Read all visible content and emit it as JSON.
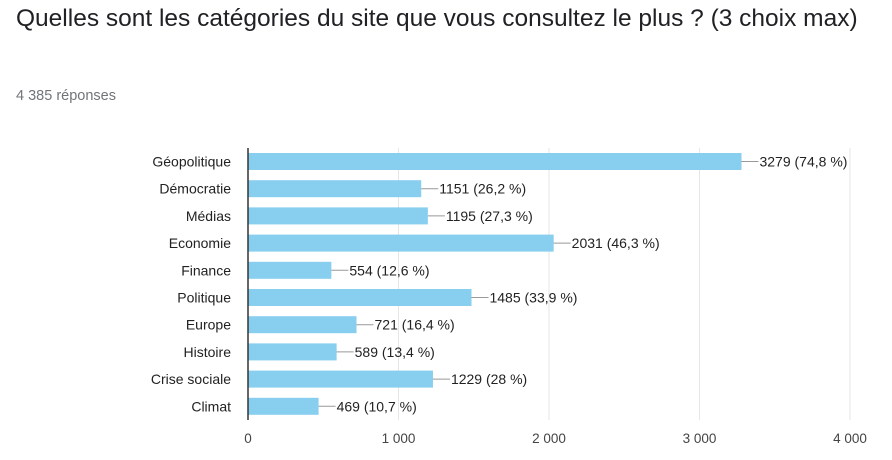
{
  "question": {
    "title": "Quelles sont les catégories du site que vous consultez le plus ? (3 choix max)",
    "responses": "4 385 réponses"
  },
  "colors": {
    "bar": "#87ceef",
    "grid": "#e6e6e6",
    "axis": "#333333",
    "leader": "#999999"
  },
  "chart_data": {
    "type": "bar",
    "orientation": "horizontal",
    "categories": [
      "Géopolitique",
      "Démocratie",
      "Médias",
      "Economie",
      "Finance",
      "Politique",
      "Europe",
      "Histoire",
      "Crise sociale",
      "Climat"
    ],
    "values": [
      3279,
      1151,
      1195,
      2031,
      554,
      1485,
      721,
      589,
      1229,
      469
    ],
    "data_labels": [
      "3279 (74,8 %)",
      "1151 (26,2 %)",
      "1195 (27,3 %)",
      "2031 (46,3 %)",
      "554 (12,6 %)",
      "1485 (33,9 %)",
      "721 (16,4 %)",
      "589 (13,4 %)",
      "1229 (28 %)",
      "469 (10,7 %)"
    ],
    "xlim": [
      0,
      4000
    ],
    "x_ticks": [
      0,
      1000,
      2000,
      3000,
      4000
    ],
    "x_tick_labels": [
      "0",
      "1 000",
      "2 000",
      "3 000",
      "4 000"
    ],
    "grid": true
  }
}
